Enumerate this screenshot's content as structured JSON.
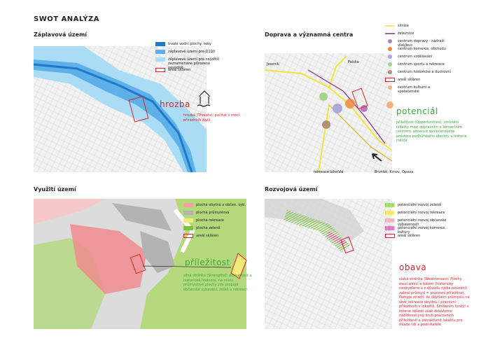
{
  "title": "SWOT ANALÝZA",
  "panels": [
    {
      "heading": "Záplavová území",
      "legend": [
        {
          "label": "trvalé vodní plochy, toky",
          "symbol": "rect",
          "color": "#1f78c8"
        },
        {
          "label": "záplavové území pro Q100",
          "symbol": "rect",
          "color": "#5db0e8"
        },
        {
          "label": "záplavové území pro největší zaznamenané přirozené povodně",
          "symbol": "rect",
          "color": "#aadcf6"
        },
        {
          "label": "areál skláren",
          "symbol": "outline",
          "color": "#e0202a"
        }
      ],
      "annotation": {
        "keyword": "hrozba",
        "color": "#e0202a",
        "text": "hrozba (Threats): počítat s mocí přírodních živlů"
      },
      "map_labels": []
    },
    {
      "heading": "Doprava a významná centra",
      "legend": [
        {
          "label": "silnice",
          "symbol": "line",
          "color": "#f2e33a"
        },
        {
          "label": "železnice",
          "symbol": "line",
          "color": "#8a2a8c"
        },
        {
          "label": "centrum dopravy - nádraží vlak/bus",
          "symbol": "circle",
          "color": "#b57cc4"
        },
        {
          "label": "centrum komerce, obchodu",
          "symbol": "circle",
          "color": "#f08a3c"
        },
        {
          "label": "centrum vzdělávání",
          "symbol": "circle",
          "color": "#aaa8dc"
        },
        {
          "label": "centrum sportu a rekreace",
          "symbol": "circle",
          "color": "#a9d18e"
        },
        {
          "label": "centrum historické a duchovní",
          "symbol": "circle",
          "color": "#b58f72"
        },
        {
          "label": "areál skláren",
          "symbol": "outline",
          "color": "#e0202a"
        },
        {
          "label": "centrum kulturní a společenské",
          "symbol": "circle",
          "color": "#f4b183"
        }
      ],
      "annotation": {
        "keyword": "potenciál",
        "color": "#3aa83a",
        "text": "příležitost (Opportunities): umístění lokality mezi dopravním a komerčním centrem, absence společenského prostoru podhůřského identity a historie města"
      },
      "map_labels": [
        "Jeseník",
        "Polsko",
        "rekreace bike/ski",
        "Bruntál, Krnov, Opava"
      ]
    },
    {
      "heading": "Využití území",
      "legend": [
        {
          "label": "plocha obytná a občan. vyb.",
          "symbol": "rect",
          "color": "#f4a0a4"
        },
        {
          "label": "plocha průmyslová",
          "symbol": "rect",
          "color": "#b3b3b3"
        },
        {
          "label": "plocha rekreace",
          "symbol": "rect",
          "color": "#f3ea7c"
        },
        {
          "label": "plocha zeleně",
          "symbol": "rect",
          "color": "#7cc242"
        },
        {
          "label": "areál skláren",
          "symbol": "outline",
          "color": "#e0202a"
        }
      ],
      "annotation": {
        "keyword": "příležitost",
        "color": "#3aa83a",
        "text": "silná stránka (Strengths): dostupnost a historická hodnota, na místo průmyslové plochy zde propojit občanské vybavení, zeleň a rekreaci"
      },
      "map_labels": []
    },
    {
      "heading": "Rozvojová území",
      "legend": [
        {
          "label": "potenciální rozvoj zeleně",
          "symbol": "hatch",
          "color": "#7cc242"
        },
        {
          "label": "potenciální rozvoj rekreace",
          "symbol": "hatch",
          "color": "#f3e35a"
        },
        {
          "label": "potenciální rozvoj občanské vybavenosti",
          "symbol": "hatch",
          "color": "#f4a0a4"
        },
        {
          "label": "potenciální rozvoj komerce, kultury",
          "symbol": "hatch",
          "color": "#d8479a"
        },
        {
          "label": "areál skláren",
          "symbol": "outline",
          "color": "#e0202a"
        }
      ],
      "annotation": {
        "keyword": "obava",
        "color": "#e0202a",
        "text": "slabá stránka (Weaknesses): Plochy mezi silnicí a tokem (historicky neobydlené a z důvodu rizika povodní) zabral průmysl = pracovní příležitost. Pamyje strach, že úbytkem průmyslu na úkor rekreace ubydou i pracovní příležitosti v lokalitě. Smíšenim funkcí v řešené oblasti však dokážeme nabídnout jiný druh pracovních příležitostí a zatraktivnit lokalitu pro mladé lidi a podnikatele"
      },
      "map_labels": []
    }
  ]
}
